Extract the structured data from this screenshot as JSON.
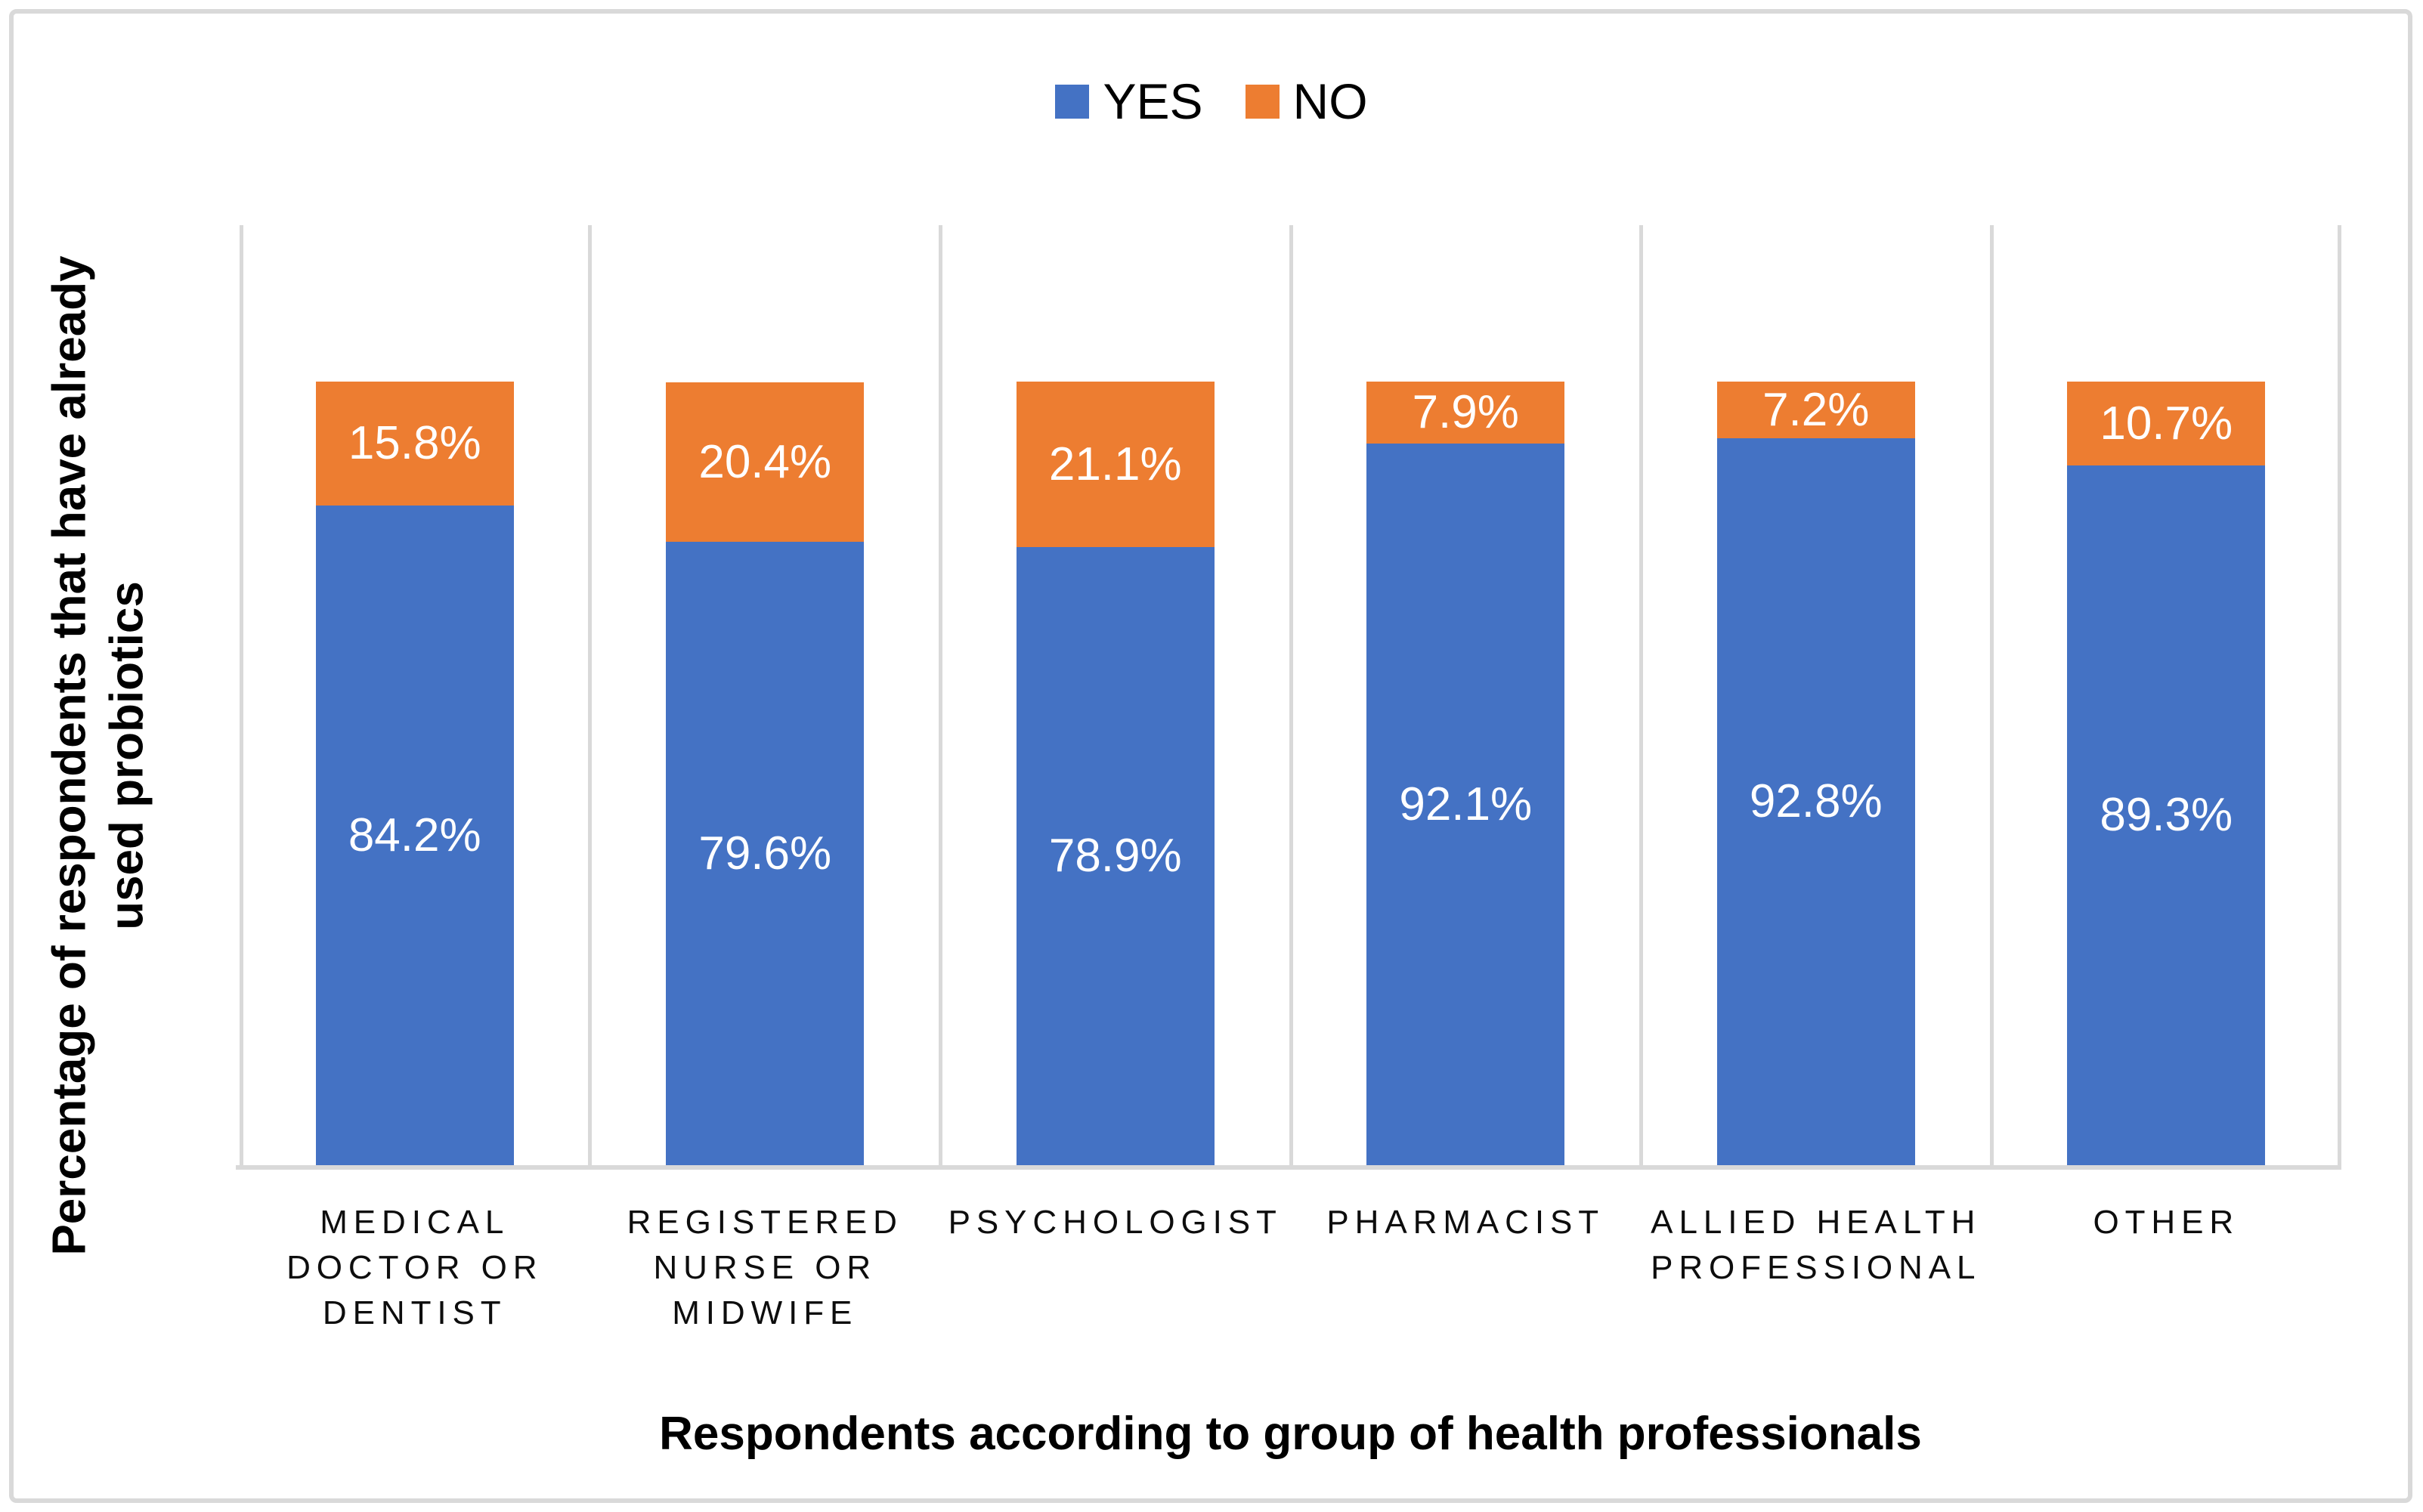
{
  "frame": {
    "border_color": "#d9d9d9"
  },
  "legend": {
    "items": [
      {
        "label": "YES",
        "color": "#4472c4"
      },
      {
        "label": "NO",
        "color": "#ed7d31"
      }
    ]
  },
  "axes": {
    "y_title_line1": "Percentage of respondents that have already",
    "y_title_line2": "used probiotics",
    "x_title": "Respondents according to group of health professionals"
  },
  "chart_data": {
    "type": "bar",
    "stacked": true,
    "title": "",
    "xlabel": "Respondents according to group of health professionals",
    "ylabel": "Percentage of respondents that have already used probiotics",
    "categories": [
      "MEDICAL DOCTOR OR DENTIST",
      "REGISTERED NURSE OR MIDWIFE",
      "PSYCHOLOGIST",
      "PHARMACIST",
      "ALLIED HEALTH PROFESSIONAL",
      "OTHER"
    ],
    "category_label_lines": [
      [
        "MEDICAL",
        "DOCTOR OR",
        "DENTIST"
      ],
      [
        "REGISTERED",
        "NURSE OR",
        "MIDWIFE"
      ],
      [
        "PSYCHOLOGIST"
      ],
      [
        "PHARMACIST"
      ],
      [
        "ALLIED HEALTH",
        "PROFESSIONAL"
      ],
      [
        "OTHER"
      ]
    ],
    "series": [
      {
        "name": "YES",
        "color": "#4472c4",
        "values": [
          84.2,
          79.6,
          78.9,
          92.1,
          92.8,
          89.3
        ],
        "labels": [
          "84.2%",
          "79.6%",
          "78.9%",
          "92.1%",
          "92.8%",
          "89.3%"
        ],
        "label_color": "#ffffff"
      },
      {
        "name": "NO",
        "color": "#ed7d31",
        "values": [
          15.8,
          20.4,
          21.1,
          7.9,
          7.2,
          10.7
        ],
        "labels": [
          "15.8%",
          "20.4%",
          "21.1%",
          "7.9%",
          "7.2%",
          "10.7%"
        ],
        "label_color": "#ffffff"
      }
    ],
    "ylim": [
      0,
      120
    ],
    "grid": "vertical-category-separators",
    "gridline_color": "#d9d9d9",
    "legend_position": "top-center",
    "y_tick_labels_visible": false
  }
}
